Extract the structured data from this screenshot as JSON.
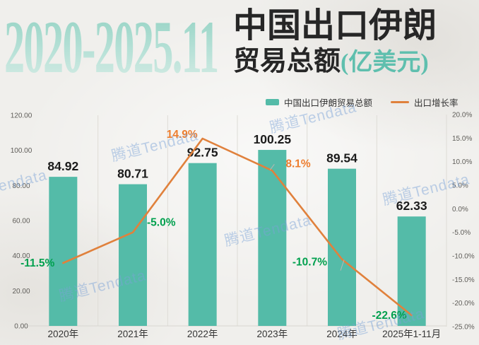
{
  "header": {
    "period": "2020-2025.11",
    "title": "中国出口伊朗",
    "subtitle": "贸易总额",
    "unit": "(亿美元)"
  },
  "legend": {
    "bar_label": "中国出口伊朗贸易总额",
    "line_label": "出口增长率"
  },
  "watermark": "腾道Tendata",
  "colors": {
    "bar": "#54bba8",
    "line": "#e0813c",
    "positive_label": "#ed7d2e",
    "negative_label": "#00a04e",
    "title_accent": "#5fbfae",
    "bar_value_label": "#1b1b1b",
    "axis_text": "#5e5c58",
    "grid": "#dedcd6"
  },
  "chart_data": {
    "type": "bar",
    "title": "中国出口伊朗贸易总额（亿美元）与出口增长率，2020-2025.11",
    "categories": [
      "2020年",
      "2021年",
      "2022年",
      "2023年",
      "2024年",
      "2025年1-11月"
    ],
    "series": [
      {
        "name": "中国出口伊朗贸易总额",
        "type": "bar",
        "unit": "亿美元",
        "values": [
          84.92,
          80.71,
          92.75,
          100.25,
          89.54,
          62.33
        ]
      },
      {
        "name": "出口增长率",
        "type": "line",
        "unit": "%",
        "values": [
          -11.5,
          -5.0,
          14.9,
          8.1,
          -10.7,
          -22.6
        ]
      }
    ],
    "left_axis": {
      "min": 0,
      "max": 120,
      "step": 20,
      "format": "two-decimals"
    },
    "right_axis": {
      "min": -25,
      "max": 20,
      "step": 5,
      "format": "percent-one-decimal"
    },
    "grid": "vertical-only",
    "legend_position": "top-right"
  }
}
